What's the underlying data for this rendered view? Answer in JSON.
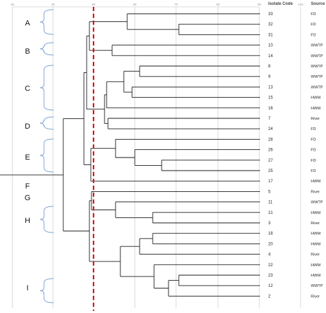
{
  "headers": {
    "isolate_code": "Isolate Code",
    "source": "Source"
  },
  "scale_ticks": [
    "30",
    "40",
    "50",
    "60",
    "70",
    "80",
    "90",
    "100"
  ],
  "isolates": [
    {
      "code": "33",
      "source": "FD"
    },
    {
      "code": "32",
      "source": "FD"
    },
    {
      "code": "31",
      "source": "FD"
    },
    {
      "code": "10",
      "source": "WWTP"
    },
    {
      "code": "14",
      "source": "WWTP"
    },
    {
      "code": "8",
      "source": "WWTP"
    },
    {
      "code": "9",
      "source": "WWTP"
    },
    {
      "code": "13",
      "source": "WWTP"
    },
    {
      "code": "15",
      "source": "HWW"
    },
    {
      "code": "16",
      "source": "HWW"
    },
    {
      "code": "7",
      "source": "River"
    },
    {
      "code": "24",
      "source": "FD"
    },
    {
      "code": "28",
      "source": "FD"
    },
    {
      "code": "26",
      "source": "FD"
    },
    {
      "code": "27",
      "source": "FD"
    },
    {
      "code": "25",
      "source": "FD"
    },
    {
      "code": "17",
      "source": "HWW"
    },
    {
      "code": "5",
      "source": "River"
    },
    {
      "code": "11",
      "source": "WWTP"
    },
    {
      "code": "21",
      "source": "HWW"
    },
    {
      "code": "3",
      "source": "River"
    },
    {
      "code": "18",
      "source": "HWW"
    },
    {
      "code": "20",
      "source": "HWW"
    },
    {
      "code": "4",
      "source": "River"
    },
    {
      "code": "22",
      "source": "HWW"
    },
    {
      "code": "23",
      "source": "HWW"
    },
    {
      "code": "12",
      "source": "WWTP"
    },
    {
      "code": "2",
      "source": "River"
    }
  ],
  "clusters": [
    {
      "label": "A",
      "brace": true
    },
    {
      "label": "B",
      "brace": true
    },
    {
      "label": "C",
      "brace": true
    },
    {
      "label": "D",
      "brace": true
    },
    {
      "label": "E",
      "brace": true
    },
    {
      "label": "F",
      "brace": false
    },
    {
      "label": "G",
      "brace": false
    },
    {
      "label": "H",
      "brace": true
    },
    {
      "label": "I",
      "brace": true
    }
  ],
  "colors": {
    "tree": "#1a1a1a",
    "cutoff_line": "#d11a1a",
    "brace": "#7ea4d6"
  }
}
